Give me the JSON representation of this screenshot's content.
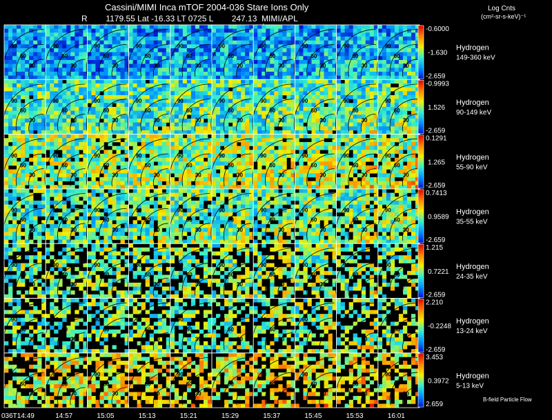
{
  "header": {
    "title": "Cassini/MIMI Inca mTOF  2004-036   Stare   Ions Only",
    "coords": "R        1179.55 Lat -16.33 LT 0725 L        247.13  MIMI/APL",
    "panel_label_a": "satur",
    "panel_label_b": "saturn",
    "units_line1": "Log Cnts",
    "units_line2": "(cm²-sr-s-keV)⁻¹"
  },
  "footer": {
    "flow_label": "B-field Particle Flow"
  },
  "chart_data": {
    "type": "heatmap",
    "x_label": "",
    "time_labels": [
      "036T14:49",
      "14:57",
      "15:05",
      "15:13",
      "15:21",
      "15:29",
      "15:37",
      "15:45",
      "15:53",
      "16:01"
    ],
    "contour_labels": [
      "30",
      "60",
      "90"
    ],
    "color_scale": [
      "#0018d0",
      "#0090ff",
      "#30f0d0",
      "#f0f000",
      "#ff8000",
      "#e00000"
    ],
    "rows": [
      {
        "species": "Hydrogen",
        "energy": "149-360 keV",
        "cbar_max": "-0.6000",
        "cbar_mid": "-1.630",
        "cbar_min": "-2.659",
        "mean_level": 0.22,
        "fill": 1.0
      },
      {
        "species": "Hydrogen",
        "energy": "90-149 keV",
        "cbar_max": "-0.9993",
        "cbar_mid": "1.526",
        "cbar_min": "-2.659",
        "mean_level": 0.4,
        "fill": 0.98
      },
      {
        "species": "Hydrogen",
        "energy": "55-90 keV",
        "cbar_max": "0.1291",
        "cbar_mid": "1.265",
        "cbar_min": "-2.659",
        "mean_level": 0.5,
        "fill": 0.93
      },
      {
        "species": "Hydrogen",
        "energy": "35-55 keV",
        "cbar_max": "0.7413",
        "cbar_mid": "0.9589",
        "cbar_min": "-2.659",
        "mean_level": 0.44,
        "fill": 0.85
      },
      {
        "species": "Hydrogen",
        "energy": "24-35 keV",
        "cbar_max": "1.215",
        "cbar_mid": "0.7221",
        "cbar_min": "-2.659",
        "mean_level": 0.45,
        "fill": 0.6
      },
      {
        "species": "Hydrogen",
        "energy": "13-24 keV",
        "cbar_max": "2.210",
        "cbar_mid": "-0.2248",
        "cbar_min": "-2.659",
        "mean_level": 0.45,
        "fill": 0.55
      },
      {
        "species": "Hydrogen",
        "energy": "5-13 keV",
        "cbar_max": "3.453",
        "cbar_mid": "0.3972",
        "cbar_min": "2.659",
        "mean_level": 0.6,
        "fill": 0.6
      }
    ]
  }
}
